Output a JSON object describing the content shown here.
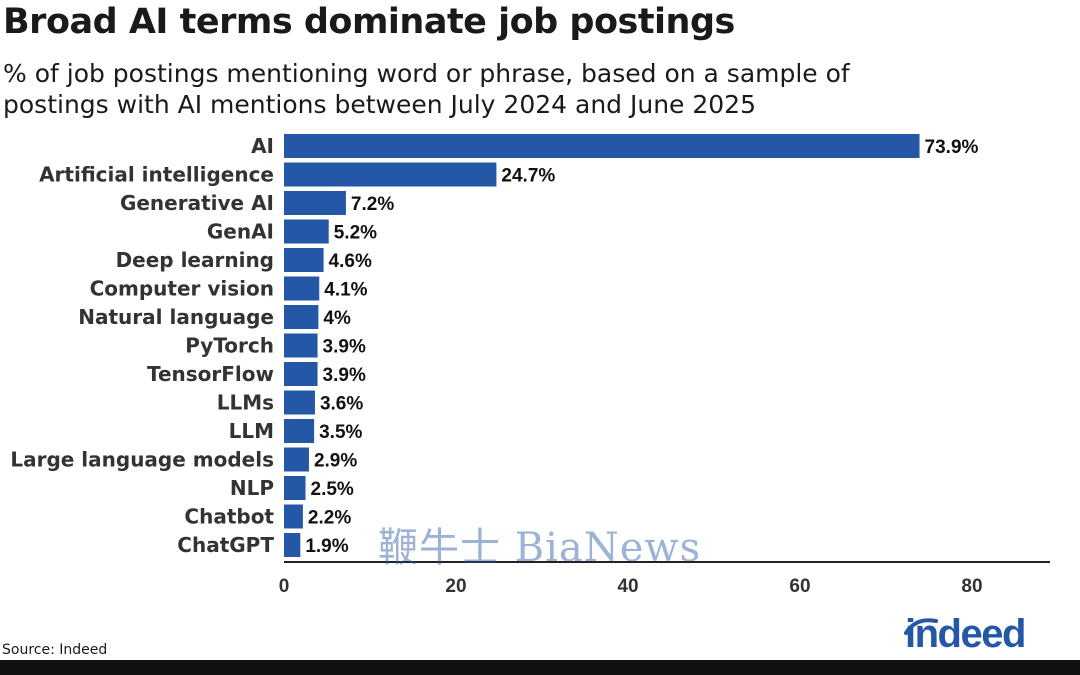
{
  "title": "Broad AI terms dominate job postings",
  "subtitle": "% of job postings mentioning word or phrase, based on a sample of postings with AI mentions between July 2024 and June 2025",
  "source": "Source: Indeed",
  "brand": "indeed",
  "watermark": "鞭牛士 BiaNews",
  "colors": {
    "bar": "#2557a7",
    "brand": "#2557a7",
    "axis": "#222222"
  },
  "chart_data": {
    "type": "bar",
    "orientation": "horizontal",
    "categories": [
      "AI",
      "Artificial intelligence",
      "Generative AI",
      "GenAI",
      "Deep learning",
      "Computer vision",
      "Natural language",
      "PyTorch",
      "TensorFlow",
      "LLMs",
      "LLM",
      "Large language models",
      "NLP",
      "Chatbot",
      "ChatGPT"
    ],
    "values": [
      73.9,
      24.7,
      7.2,
      5.2,
      4.6,
      4.1,
      4,
      3.9,
      3.9,
      3.6,
      3.5,
      2.9,
      2.5,
      2.2,
      1.9
    ],
    "value_labels": [
      "73.9%",
      "24.7%",
      "7.2%",
      "5.2%",
      "4.6%",
      "4.1%",
      "4%",
      "3.9%",
      "3.9%",
      "3.6%",
      "3.5%",
      "2.9%",
      "2.5%",
      "2.2%",
      "1.9%"
    ],
    "xlim": [
      0,
      90
    ],
    "xticks": [
      0,
      20,
      40,
      60,
      80
    ],
    "xlabel": "",
    "ylabel": "",
    "grid": false,
    "legend": "none"
  }
}
